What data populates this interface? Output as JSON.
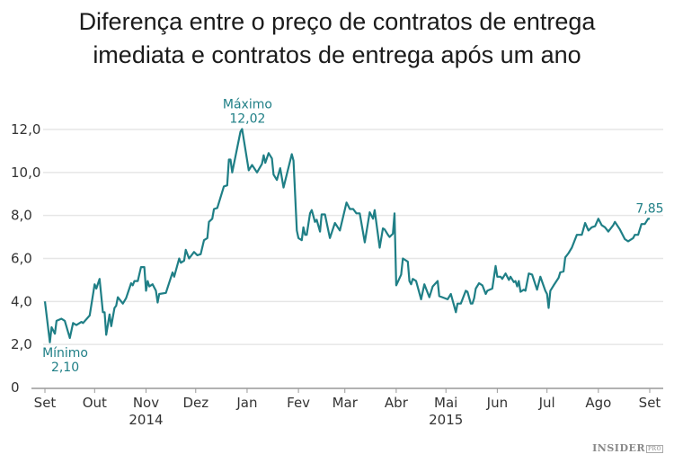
{
  "chart_data": {
    "type": "line",
    "title": "Diferença entre o preço de contratos de entrega imediata e contratos de entrega após um ano",
    "title_lines": [
      "Diferença entre o preço de contratos de entrega",
      "imediata e contratos de entrega após um ano"
    ],
    "xlabel": "",
    "ylabel": "",
    "ylim": [
      0,
      12
    ],
    "xlim": [
      "2014-09-01",
      "2015-09-01"
    ],
    "grid": true,
    "line_color": "#1f7f86",
    "y_ticks": [
      {
        "value": 0,
        "label": "0"
      },
      {
        "value": 2,
        "label": "2,0"
      },
      {
        "value": 4,
        "label": "4,0"
      },
      {
        "value": 6,
        "label": "6,0"
      },
      {
        "value": 8,
        "label": "8,0"
      },
      {
        "value": 10,
        "label": "10,0"
      },
      {
        "value": 12,
        "label": "12,0"
      }
    ],
    "x_ticks": [
      {
        "date": "2014-09-01",
        "label": "Set"
      },
      {
        "date": "2014-10-01",
        "label": "Out"
      },
      {
        "date": "2014-11-01",
        "label": "Nov",
        "year": "2014"
      },
      {
        "date": "2014-12-01",
        "label": "Dez"
      },
      {
        "date": "2015-01-01",
        "label": "Jan"
      },
      {
        "date": "2015-02-01",
        "label": "Fev"
      },
      {
        "date": "2015-03-01",
        "label": "Mar"
      },
      {
        "date": "2015-04-01",
        "label": "Abr"
      },
      {
        "date": "2015-05-01",
        "label": "Mai",
        "year": "2015"
      },
      {
        "date": "2015-06-01",
        "label": "Jun"
      },
      {
        "date": "2015-07-01",
        "label": "Jul"
      },
      {
        "date": "2015-08-01",
        "label": "Ago"
      },
      {
        "date": "2015-09-01",
        "label": "Set"
      }
    ],
    "annotations": [
      {
        "date": "2014-12-29",
        "value": 12.02,
        "label": "Máximo",
        "value_label": "12,02",
        "position": "above"
      },
      {
        "date": "2014-09-04",
        "value": 2.1,
        "label": "Mínimo",
        "value_label": "2,10",
        "position": "below"
      },
      {
        "date": "2015-09-01",
        "value": 7.85,
        "label": "",
        "value_label": "7,85",
        "position": "above"
      }
    ],
    "points": [
      [
        "2014-09-01",
        4.0
      ],
      [
        "2014-09-04",
        2.1
      ],
      [
        "2014-09-05",
        2.8
      ],
      [
        "2014-09-07",
        2.5
      ],
      [
        "2014-09-08",
        3.1
      ],
      [
        "2014-09-11",
        3.2
      ],
      [
        "2014-09-13",
        3.1
      ],
      [
        "2014-09-16",
        2.3
      ],
      [
        "2014-09-18",
        3.0
      ],
      [
        "2014-09-20",
        2.9
      ],
      [
        "2014-09-23",
        3.05
      ],
      [
        "2014-09-24",
        3.0
      ],
      [
        "2014-09-28",
        3.35
      ],
      [
        "2014-10-01",
        4.8
      ],
      [
        "2014-10-02",
        4.6
      ],
      [
        "2014-10-04",
        5.05
      ],
      [
        "2014-10-06",
        3.5
      ],
      [
        "2014-10-07",
        3.5
      ],
      [
        "2014-10-08",
        2.45
      ],
      [
        "2014-10-10",
        3.4
      ],
      [
        "2014-10-11",
        2.85
      ],
      [
        "2014-10-13",
        3.7
      ],
      [
        "2014-10-14",
        3.8
      ],
      [
        "2014-10-15",
        4.2
      ],
      [
        "2014-10-18",
        3.9
      ],
      [
        "2014-10-20",
        4.15
      ],
      [
        "2014-10-23",
        4.85
      ],
      [
        "2014-10-24",
        4.75
      ],
      [
        "2014-10-25",
        4.95
      ],
      [
        "2014-10-27",
        4.95
      ],
      [
        "2014-10-29",
        5.6
      ],
      [
        "2014-10-31",
        5.6
      ],
      [
        "2014-11-01",
        4.5
      ],
      [
        "2014-11-02",
        4.95
      ],
      [
        "2014-11-03",
        4.7
      ],
      [
        "2014-11-05",
        4.8
      ],
      [
        "2014-11-07",
        4.5
      ],
      [
        "2014-11-08",
        3.95
      ],
      [
        "2014-11-09",
        4.35
      ],
      [
        "2014-11-13",
        4.4
      ],
      [
        "2014-11-17",
        5.35
      ],
      [
        "2014-11-18",
        5.15
      ],
      [
        "2014-11-21",
        6.0
      ],
      [
        "2014-11-22",
        5.8
      ],
      [
        "2014-11-24",
        5.9
      ],
      [
        "2014-11-25",
        6.4
      ],
      [
        "2014-11-27",
        6.0
      ],
      [
        "2014-11-30",
        6.3
      ],
      [
        "2014-12-02",
        6.15
      ],
      [
        "2014-12-04",
        6.2
      ],
      [
        "2014-12-06",
        6.85
      ],
      [
        "2014-12-08",
        6.95
      ],
      [
        "2014-12-09",
        7.7
      ],
      [
        "2014-12-11",
        7.85
      ],
      [
        "2014-12-12",
        8.3
      ],
      [
        "2014-12-14",
        8.35
      ],
      [
        "2014-12-18",
        9.35
      ],
      [
        "2014-12-20",
        9.4
      ],
      [
        "2014-12-21",
        10.6
      ],
      [
        "2014-12-22",
        10.6
      ],
      [
        "2014-12-23",
        10.0
      ],
      [
        "2014-12-28",
        11.9
      ],
      [
        "2014-12-29",
        12.02
      ],
      [
        "2015-01-02",
        10.1
      ],
      [
        "2015-01-04",
        10.35
      ],
      [
        "2015-01-07",
        10.0
      ],
      [
        "2015-01-10",
        10.4
      ],
      [
        "2015-01-11",
        10.8
      ],
      [
        "2015-01-12",
        10.45
      ],
      [
        "2015-01-14",
        10.9
      ],
      [
        "2015-01-16",
        10.65
      ],
      [
        "2015-01-17",
        9.9
      ],
      [
        "2015-01-19",
        9.65
      ],
      [
        "2015-01-21",
        10.2
      ],
      [
        "2015-01-23",
        9.3
      ],
      [
        "2015-01-28",
        10.85
      ],
      [
        "2015-01-29",
        10.55
      ],
      [
        "2015-01-31",
        7.3
      ],
      [
        "2015-02-01",
        6.95
      ],
      [
        "2015-02-03",
        6.85
      ],
      [
        "2015-02-04",
        7.45
      ],
      [
        "2015-02-05",
        7.1
      ],
      [
        "2015-02-06",
        7.1
      ],
      [
        "2015-02-08",
        8.1
      ],
      [
        "2015-02-09",
        8.25
      ],
      [
        "2015-02-11",
        7.7
      ],
      [
        "2015-02-12",
        7.8
      ],
      [
        "2015-02-14",
        7.25
      ],
      [
        "2015-02-15",
        8.05
      ],
      [
        "2015-02-17",
        8.05
      ],
      [
        "2015-02-20",
        6.95
      ],
      [
        "2015-02-23",
        7.65
      ],
      [
        "2015-02-26",
        7.3
      ],
      [
        "2015-03-02",
        8.6
      ],
      [
        "2015-03-04",
        8.3
      ],
      [
        "2015-03-06",
        8.3
      ],
      [
        "2015-03-08",
        8.1
      ],
      [
        "2015-03-10",
        8.1
      ],
      [
        "2015-03-13",
        6.75
      ],
      [
        "2015-03-16",
        8.15
      ],
      [
        "2015-03-18",
        7.85
      ],
      [
        "2015-03-19",
        8.25
      ],
      [
        "2015-03-22",
        6.5
      ],
      [
        "2015-03-24",
        7.4
      ],
      [
        "2015-03-25",
        7.35
      ],
      [
        "2015-03-27",
        7.1
      ],
      [
        "2015-03-28",
        7.0
      ],
      [
        "2015-03-30",
        7.15
      ],
      [
        "2015-03-31",
        8.1
      ],
      [
        "2015-04-01",
        4.75
      ],
      [
        "2015-04-04",
        5.25
      ],
      [
        "2015-04-05",
        6.0
      ],
      [
        "2015-04-08",
        5.85
      ],
      [
        "2015-04-09",
        4.95
      ],
      [
        "2015-04-10",
        4.8
      ],
      [
        "2015-04-11",
        5.05
      ],
      [
        "2015-04-13",
        4.95
      ],
      [
        "2015-04-16",
        4.1
      ],
      [
        "2015-04-18",
        4.8
      ],
      [
        "2015-04-21",
        4.2
      ],
      [
        "2015-04-23",
        4.7
      ],
      [
        "2015-04-26",
        4.95
      ],
      [
        "2015-04-27",
        4.25
      ],
      [
        "2015-05-02",
        4.1
      ],
      [
        "2015-05-04",
        4.35
      ],
      [
        "2015-05-07",
        3.5
      ],
      [
        "2015-05-08",
        3.9
      ],
      [
        "2015-05-10",
        3.9
      ],
      [
        "2015-05-13",
        4.5
      ],
      [
        "2015-05-14",
        4.45
      ],
      [
        "2015-05-16",
        3.9
      ],
      [
        "2015-05-17",
        3.9
      ],
      [
        "2015-05-18",
        4.15
      ],
      [
        "2015-05-19",
        4.6
      ],
      [
        "2015-05-21",
        4.85
      ],
      [
        "2015-05-23",
        4.75
      ],
      [
        "2015-05-25",
        4.35
      ],
      [
        "2015-05-26",
        4.5
      ],
      [
        "2015-05-29",
        4.6
      ],
      [
        "2015-05-31",
        5.65
      ],
      [
        "2015-06-01",
        5.15
      ],
      [
        "2015-06-03",
        5.15
      ],
      [
        "2015-06-04",
        5.05
      ],
      [
        "2015-06-06",
        5.3
      ],
      [
        "2015-06-08",
        5.0
      ],
      [
        "2015-06-09",
        5.15
      ],
      [
        "2015-06-11",
        4.9
      ],
      [
        "2015-06-12",
        4.95
      ],
      [
        "2015-06-13",
        4.7
      ],
      [
        "2015-06-14",
        4.95
      ],
      [
        "2015-06-15",
        4.45
      ],
      [
        "2015-06-17",
        4.55
      ],
      [
        "2015-06-18",
        4.5
      ],
      [
        "2015-06-20",
        5.3
      ],
      [
        "2015-06-22",
        5.25
      ],
      [
        "2015-06-25",
        4.55
      ],
      [
        "2015-06-27",
        5.15
      ],
      [
        "2015-06-30",
        4.5
      ],
      [
        "2015-07-01",
        4.35
      ],
      [
        "2015-07-02",
        3.7
      ],
      [
        "2015-07-03",
        4.5
      ],
      [
        "2015-07-05",
        4.75
      ],
      [
        "2015-07-08",
        5.1
      ],
      [
        "2015-07-09",
        5.35
      ],
      [
        "2015-07-11",
        5.4
      ],
      [
        "2015-07-12",
        6.05
      ],
      [
        "2015-07-14",
        6.25
      ],
      [
        "2015-07-16",
        6.5
      ],
      [
        "2015-07-19",
        7.1
      ],
      [
        "2015-07-22",
        7.1
      ],
      [
        "2015-07-24",
        7.65
      ],
      [
        "2015-07-26",
        7.3
      ],
      [
        "2015-07-28",
        7.45
      ],
      [
        "2015-07-30",
        7.5
      ],
      [
        "2015-08-01",
        7.85
      ],
      [
        "2015-08-03",
        7.55
      ],
      [
        "2015-08-05",
        7.45
      ],
      [
        "2015-08-07",
        7.25
      ],
      [
        "2015-08-10",
        7.55
      ],
      [
        "2015-08-11",
        7.7
      ],
      [
        "2015-08-14",
        7.35
      ],
      [
        "2015-08-17",
        6.9
      ],
      [
        "2015-08-19",
        6.8
      ],
      [
        "2015-08-22",
        6.95
      ],
      [
        "2015-08-23",
        7.1
      ],
      [
        "2015-08-25",
        7.1
      ],
      [
        "2015-08-27",
        7.6
      ],
      [
        "2015-08-29",
        7.6
      ],
      [
        "2015-08-31",
        7.85
      ],
      [
        "2015-09-01",
        7.85
      ]
    ]
  },
  "logo": {
    "main": "INSIDER",
    "sub": "PRO"
  }
}
